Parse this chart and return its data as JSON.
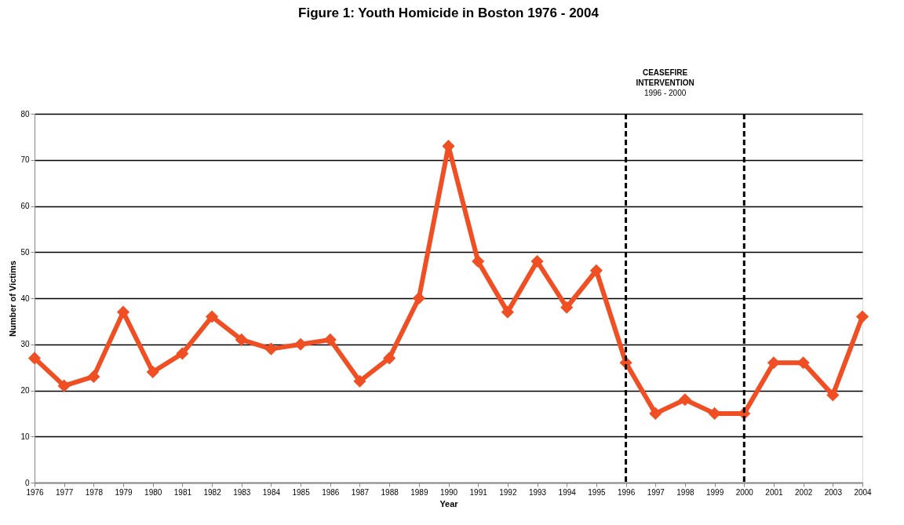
{
  "chart_data": {
    "type": "line",
    "title": "Figure 1: Youth Homicide in Boston 1976 - 2004",
    "xlabel": "Year",
    "ylabel": "Number of Victims",
    "categories": [
      "1976",
      "1977",
      "1978",
      "1979",
      "1980",
      "1981",
      "1982",
      "1983",
      "1984",
      "1985",
      "1986",
      "1987",
      "1988",
      "1989",
      "1990",
      "1991",
      "1992",
      "1993",
      "1994",
      "1995",
      "1996",
      "1997",
      "1998",
      "1999",
      "2000",
      "2001",
      "2002",
      "2003",
      "2004"
    ],
    "series": [
      {
        "color": "#f04e23",
        "values": [
          27,
          21,
          23,
          37,
          24,
          28,
          36,
          31,
          29,
          30,
          31,
          22,
          27,
          40,
          73,
          48,
          37,
          48,
          38,
          46,
          26,
          15,
          18,
          15,
          15,
          26,
          26,
          19,
          36
        ]
      }
    ],
    "ylim": [
      0,
      80
    ],
    "yticks": [
      0,
      10,
      20,
      30,
      40,
      50,
      60,
      70,
      80
    ],
    "grid": "y",
    "marker": "diamond",
    "line_style": "solid",
    "ref_lines": [
      {
        "axis": "x",
        "value": "1996",
        "color": "#000000",
        "line_style": "dashed"
      },
      {
        "axis": "x",
        "value": "2000",
        "color": "#000000",
        "line_style": "dashed"
      }
    ],
    "annotations": [
      "CEASEFIRE",
      "INTERVENTION",
      "1996 - 2000"
    ]
  }
}
